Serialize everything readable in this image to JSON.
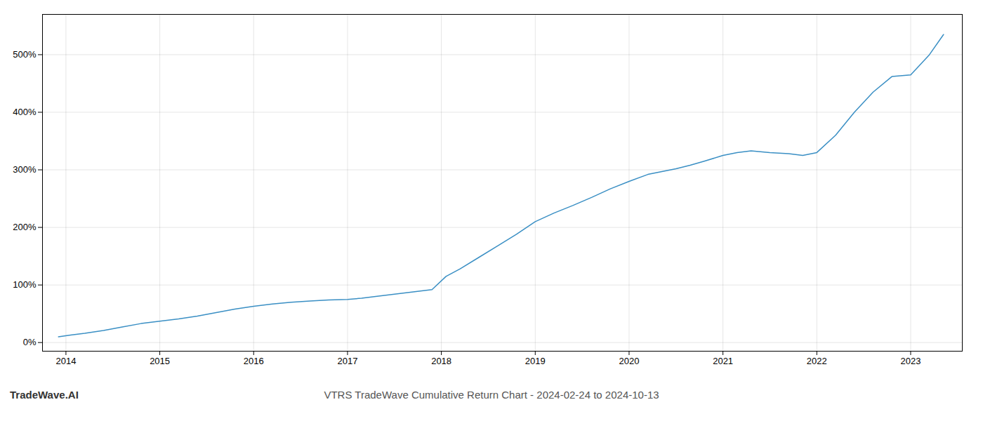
{
  "chart_data": {
    "type": "line",
    "title": "VTRS TradeWave Cumulative Return Chart - 2024-02-24 to 2024-10-13",
    "annotations": [
      "TradeWave.AI"
    ],
    "color": "#3a8fc4",
    "x": [
      2013.92,
      2014.05,
      2014.2,
      2014.4,
      2014.6,
      2014.8,
      2015.0,
      2015.2,
      2015.4,
      2015.6,
      2015.8,
      2016.0,
      2016.2,
      2016.4,
      2016.6,
      2016.8,
      2017.0,
      2017.15,
      2017.3,
      2017.5,
      2017.7,
      2017.9,
      2018.05,
      2018.2,
      2018.4,
      2018.6,
      2018.8,
      2019.0,
      2019.2,
      2019.4,
      2019.6,
      2019.8,
      2020.0,
      2020.2,
      2020.35,
      2020.5,
      2020.65,
      2020.8,
      2021.0,
      2021.15,
      2021.3,
      2021.5,
      2021.7,
      2021.85,
      2022.0,
      2022.2,
      2022.4,
      2022.6,
      2022.8,
      2023.0,
      2023.2,
      2023.35
    ],
    "values": [
      10,
      13,
      16,
      21,
      27,
      33,
      37,
      41,
      46,
      52,
      58,
      63,
      67,
      70,
      72,
      74,
      75,
      77,
      80,
      84,
      88,
      92,
      115,
      128,
      148,
      168,
      188,
      210,
      225,
      238,
      252,
      267,
      280,
      292,
      297,
      302,
      308,
      315,
      325,
      330,
      333,
      330,
      328,
      325,
      330,
      360,
      400,
      435,
      462,
      465,
      500,
      535
    ],
    "xlim": [
      2013.75,
      2023.55
    ],
    "xticks": [
      2014,
      2015,
      2016,
      2017,
      2018,
      2019,
      2020,
      2021,
      2022,
      2023
    ],
    "ylim": [
      -15,
      570
    ],
    "yticks": [
      {
        "value": 0,
        "label": "0%"
      },
      {
        "value": 100,
        "label": "100%"
      },
      {
        "value": 200,
        "label": "200%"
      },
      {
        "value": 300,
        "label": "300%"
      },
      {
        "value": 400,
        "label": "400%"
      },
      {
        "value": 500,
        "label": "500%"
      }
    ],
    "grid": true
  }
}
